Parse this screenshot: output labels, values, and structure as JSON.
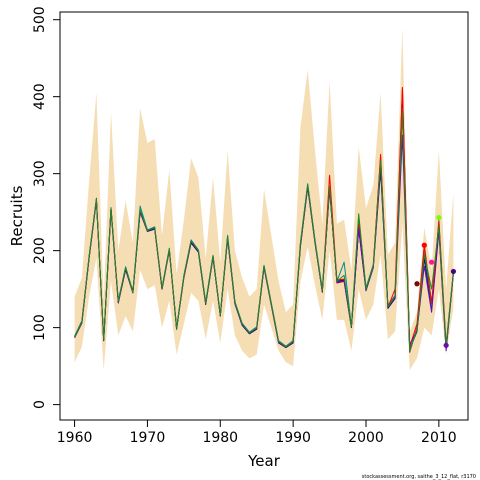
{
  "chart_data": {
    "type": "line",
    "xlabel": "Year",
    "ylabel": "Recruits",
    "xlim": [
      1958,
      2014
    ],
    "ylim": [
      -20,
      510
    ],
    "x_ticks": [
      1960,
      1970,
      1980,
      1990,
      2000,
      2010
    ],
    "y_ticks": [
      0,
      100,
      200,
      300,
      400,
      500
    ],
    "footnote": "stockassessment.org, saithe_3_12_flat, r3170",
    "band_color": "#F5DEB3",
    "years": [
      1960,
      1961,
      1962,
      1963,
      1964,
      1965,
      1966,
      1967,
      1968,
      1969,
      1970,
      1971,
      1972,
      1973,
      1974,
      1975,
      1976,
      1977,
      1978,
      1979,
      1980,
      1981,
      1982,
      1983,
      1984,
      1985,
      1986,
      1987,
      1988,
      1989,
      1990,
      1991,
      1992,
      1993,
      1994,
      1995,
      1996,
      1997,
      1998,
      1999,
      2000,
      2001,
      2002,
      2003,
      2004,
      2005,
      2006,
      2007,
      2008,
      2009,
      2010,
      2011,
      2012
    ],
    "band_upper": [
      140,
      165,
      290,
      405,
      135,
      380,
      200,
      265,
      210,
      385,
      340,
      345,
      220,
      305,
      170,
      240,
      320,
      295,
      190,
      295,
      185,
      330,
      200,
      165,
      140,
      150,
      280,
      220,
      160,
      120,
      130,
      360,
      435,
      330,
      235,
      420,
      235,
      240,
      175,
      335,
      255,
      285,
      405,
      195,
      210,
      490,
      95,
      120,
      230,
      175,
      330,
      150,
      275
    ],
    "band_lower": [
      55,
      75,
      140,
      190,
      45,
      160,
      90,
      115,
      95,
      175,
      150,
      155,
      100,
      135,
      65,
      105,
      145,
      135,
      85,
      135,
      80,
      150,
      90,
      70,
      60,
      65,
      130,
      100,
      70,
      55,
      50,
      160,
      205,
      155,
      110,
      200,
      110,
      110,
      70,
      150,
      110,
      130,
      195,
      85,
      95,
      235,
      45,
      60,
      100,
      90,
      150,
      65,
      125
    ],
    "series": [
      {
        "color": "#B0003A",
        "values": [
          88,
          108,
          192,
          268,
          84,
          255,
          134,
          178,
          146,
          252,
          226,
          230,
          151,
          202,
          99,
          167,
          213,
          200,
          132,
          193,
          116,
          218,
          133,
          105,
          93,
          100,
          180,
          131,
          82,
          75,
          82,
          208,
          285,
          212,
          148,
          282,
          158,
          160,
          101,
          230,
          150,
          180,
          322,
          127,
          140,
          410,
          68,
          100,
          205,
          130,
          235,
          75,
          172
        ]
      },
      {
        "color": "#000080",
        "values": [
          87,
          106,
          190,
          265,
          83,
          252,
          132,
          175,
          145,
          250,
          225,
          228,
          150,
          200,
          98,
          165,
          210,
          198,
          130,
          191,
          115,
          215,
          131,
          103,
          92,
          98,
          178,
          129,
          80,
          74,
          80,
          205,
          282,
          210,
          146,
          280,
          160,
          162,
          100,
          228,
          148,
          178,
          305,
          125,
          138,
          395,
          72,
          95,
          190,
          125,
          228,
          72,
          170
        ]
      },
      {
        "color": "#008B8B",
        "values": [
          89,
          109,
          193,
          267,
          85,
          256,
          135,
          179,
          147,
          258,
          227,
          231,
          152,
          203,
          100,
          168,
          214,
          201,
          133,
          194,
          117,
          220,
          134,
          106,
          94,
          101,
          181,
          132,
          83,
          76,
          83,
          210,
          287,
          214,
          150,
          284,
          160,
          185,
          102,
          245,
          152,
          182,
          315,
          129,
          142,
          385,
          70,
          98,
          200,
          128,
          240,
          78,
          173
        ]
      },
      {
        "color": "#FF0000",
        "values": [
          88,
          107,
          191,
          266,
          84,
          254,
          133,
          177,
          146,
          251,
          226,
          229,
          150,
          201,
          99,
          166,
          212,
          199,
          131,
          192,
          116,
          217,
          132,
          104,
          93,
          99,
          179,
          130,
          81,
          75,
          81,
          207,
          284,
          211,
          147,
          298,
          162,
          163,
          101,
          235,
          149,
          181,
          325,
          126,
          150,
          412,
          75,
          105,
          208,
          132,
          238,
          76,
          172
        ]
      },
      {
        "color": "#6A0DAD",
        "values": [
          87,
          107,
          191,
          266,
          84,
          254,
          133,
          177,
          146,
          251,
          226,
          229,
          150,
          201,
          99,
          166,
          212,
          199,
          131,
          192,
          116,
          217,
          132,
          104,
          93,
          99,
          179,
          130,
          81,
          75,
          81,
          207,
          284,
          211,
          147,
          281,
          159,
          161,
          101,
          229,
          149,
          179,
          310,
          126,
          139,
          350,
          78,
          96,
          180,
          120,
          225,
          70,
          171
        ]
      },
      {
        "color": "#228B22",
        "values": [
          88,
          108,
          192,
          267,
          84,
          255,
          134,
          178,
          146,
          253,
          226,
          230,
          151,
          202,
          99,
          167,
          213,
          200,
          132,
          193,
          116,
          218,
          133,
          105,
          93,
          100,
          180,
          131,
          82,
          75,
          82,
          209,
          286,
          212,
          148,
          283,
          160,
          168,
          101,
          248,
          150,
          180,
          318,
          127,
          141,
          380,
          70,
          97,
          195,
          150,
          232,
          74,
          172
        ]
      }
    ],
    "endpoints": [
      {
        "year": 2007,
        "value": 157,
        "color": "#8B0000"
      },
      {
        "year": 2008,
        "value": 207,
        "color": "#FF0000"
      },
      {
        "year": 2009,
        "value": 185,
        "color": "#FF1493"
      },
      {
        "year": 2010,
        "value": 243,
        "color": "#7CFC00"
      },
      {
        "year": 2011,
        "value": 77,
        "color": "#6A0DAD"
      },
      {
        "year": 2012,
        "value": 173,
        "color": "#4B0082"
      }
    ]
  }
}
